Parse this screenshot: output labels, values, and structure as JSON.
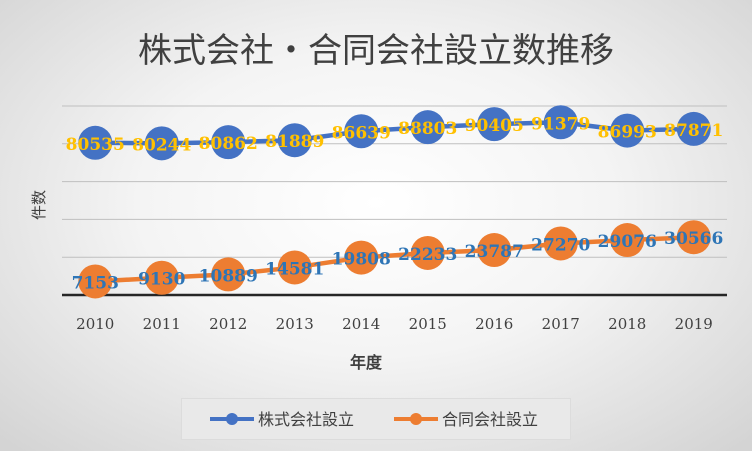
{
  "chart_data": {
    "type": "line",
    "title": "株式会社・合同会社設立数推移",
    "xlabel": "年度",
    "ylabel": "件数",
    "categories": [
      "2010",
      "2011",
      "2012",
      "2013",
      "2014",
      "2015",
      "2016",
      "2017",
      "2018",
      "2019"
    ],
    "series": [
      {
        "name": "株式会社設立",
        "values": [
          80535,
          80244,
          80862,
          81889,
          86639,
          88803,
          90405,
          91379,
          86993,
          87871
        ],
        "color": "#4472c4",
        "label_color": "#ffc000"
      },
      {
        "name": "合同会社設立",
        "values": [
          7153,
          9130,
          10889,
          14581,
          19808,
          22233,
          23787,
          27270,
          29076,
          30566
        ],
        "color": "#ed7d31",
        "label_color": "#2e75b6"
      }
    ],
    "ylim": [
      0,
      100000
    ],
    "gridlines": true,
    "legend_position": "bottom"
  }
}
